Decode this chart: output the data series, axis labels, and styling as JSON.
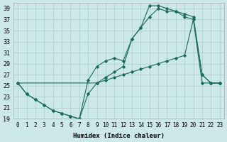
{
  "xlabel": "Humidex (Indice chaleur)",
  "bg_color": "#cce8e8",
  "grid_color": "#aacccc",
  "line_color": "#1a6b5a",
  "xlim": [
    -0.5,
    23.5
  ],
  "ylim": [
    19,
    40
  ],
  "xticks": [
    0,
    1,
    2,
    3,
    4,
    5,
    6,
    7,
    8,
    9,
    10,
    11,
    12,
    13,
    14,
    15,
    16,
    17,
    18,
    19,
    20,
    21,
    22,
    23
  ],
  "yticks": [
    19,
    21,
    23,
    25,
    27,
    29,
    31,
    33,
    35,
    37,
    39
  ],
  "line1_x": [
    0,
    1,
    2,
    3,
    4,
    5,
    6,
    7,
    8,
    9,
    10,
    11,
    12,
    13,
    14,
    15,
    16,
    17,
    18,
    19,
    20,
    21,
    22,
    23
  ],
  "line1_y": [
    25.5,
    23.5,
    22.5,
    21.5,
    20.5,
    20.0,
    19.5,
    19.0,
    26.0,
    28.5,
    29.5,
    30.0,
    29.5,
    33.5,
    35.5,
    39.5,
    39.5,
    39.0,
    38.5,
    38.0,
    37.5,
    27.0,
    25.5,
    25.5
  ],
  "line2_x": [
    0,
    1,
    2,
    3,
    4,
    5,
    6,
    7,
    8,
    9,
    10,
    11,
    12,
    13,
    14,
    15,
    16,
    17,
    18,
    19,
    20,
    21,
    22,
    23
  ],
  "line2_y": [
    25.5,
    23.5,
    22.5,
    21.5,
    20.5,
    20.0,
    19.5,
    19.0,
    23.5,
    25.5,
    26.0,
    26.5,
    27.0,
    27.5,
    28.0,
    28.5,
    29.0,
    29.5,
    30.0,
    30.5,
    37.0,
    25.5,
    25.5,
    25.5
  ],
  "line3_x": [
    0,
    9,
    10,
    11,
    12,
    13,
    14,
    15,
    16,
    17,
    18,
    19,
    20,
    21,
    22,
    23
  ],
  "line3_y": [
    25.5,
    25.5,
    26.5,
    27.5,
    28.5,
    33.5,
    35.5,
    37.5,
    39.0,
    38.5,
    38.5,
    37.5,
    37.0,
    27.0,
    25.5,
    25.5
  ]
}
